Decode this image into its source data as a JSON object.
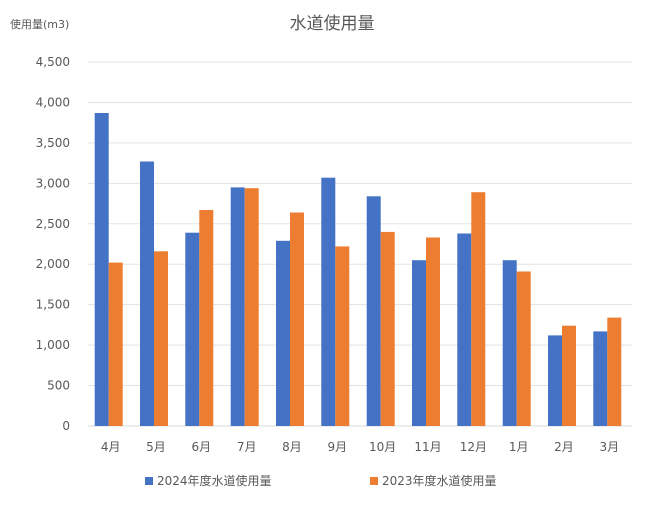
{
  "chart_data": {
    "type": "bar",
    "title": "水道使用量",
    "ylabel": "使用量(m3)",
    "xlabel": "",
    "categories": [
      "4月",
      "5月",
      "6月",
      "7月",
      "8月",
      "9月",
      "10月",
      "11月",
      "12月",
      "1月",
      "2月",
      "3月"
    ],
    "series": [
      {
        "name": "2024年度水道使用量",
        "color": "#4472C4",
        "values": [
          3870,
          3270,
          2390,
          2950,
          2290,
          3070,
          2840,
          2050,
          2380,
          2050,
          1120,
          1170
        ]
      },
      {
        "name": "2023年度水道使用量",
        "color": "#ED7D31",
        "values": [
          2020,
          2160,
          2670,
          2940,
          2640,
          2220,
          2400,
          2330,
          2890,
          1910,
          1240,
          1340
        ]
      }
    ],
    "ylim": [
      0,
      4500
    ],
    "yticks": [
      0,
      500,
      1000,
      1500,
      2000,
      2500,
      3000,
      3500,
      4000,
      4500
    ],
    "ytick_labels": [
      "0",
      "500",
      "1,000",
      "1,500",
      "2,000",
      "2,500",
      "3,000",
      "3,500",
      "4,000",
      "4,500"
    ],
    "grid": true,
    "legend_position": "bottom"
  }
}
